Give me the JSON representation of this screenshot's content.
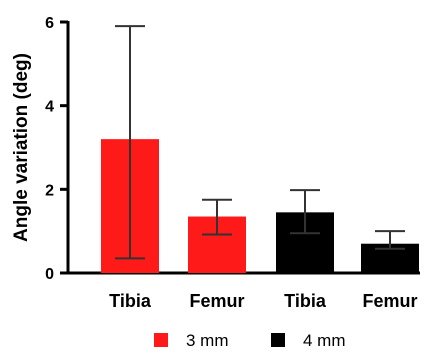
{
  "chart_data": {
    "type": "bar",
    "categories": [
      "Tibia",
      "Femur",
      "Tibia",
      "Femur"
    ],
    "values": [
      3.2,
      1.35,
      1.45,
      0.7
    ],
    "error_low": [
      0.35,
      0.92,
      0.95,
      0.58
    ],
    "error_high": [
      5.9,
      1.75,
      1.98,
      1.0
    ],
    "bar_groups": [
      "3 mm",
      "3 mm",
      "4 mm",
      "4 mm"
    ],
    "series": [
      {
        "name": "3 mm",
        "color": "#ff1a1a"
      },
      {
        "name": "4 mm",
        "color": "#000000"
      }
    ],
    "ylabel": "Angle variation (deg)",
    "xlabel": "",
    "ylim": [
      0,
      6
    ],
    "yticks": [
      0,
      2,
      4,
      6
    ],
    "grid": false,
    "legend_position": "bottom"
  }
}
